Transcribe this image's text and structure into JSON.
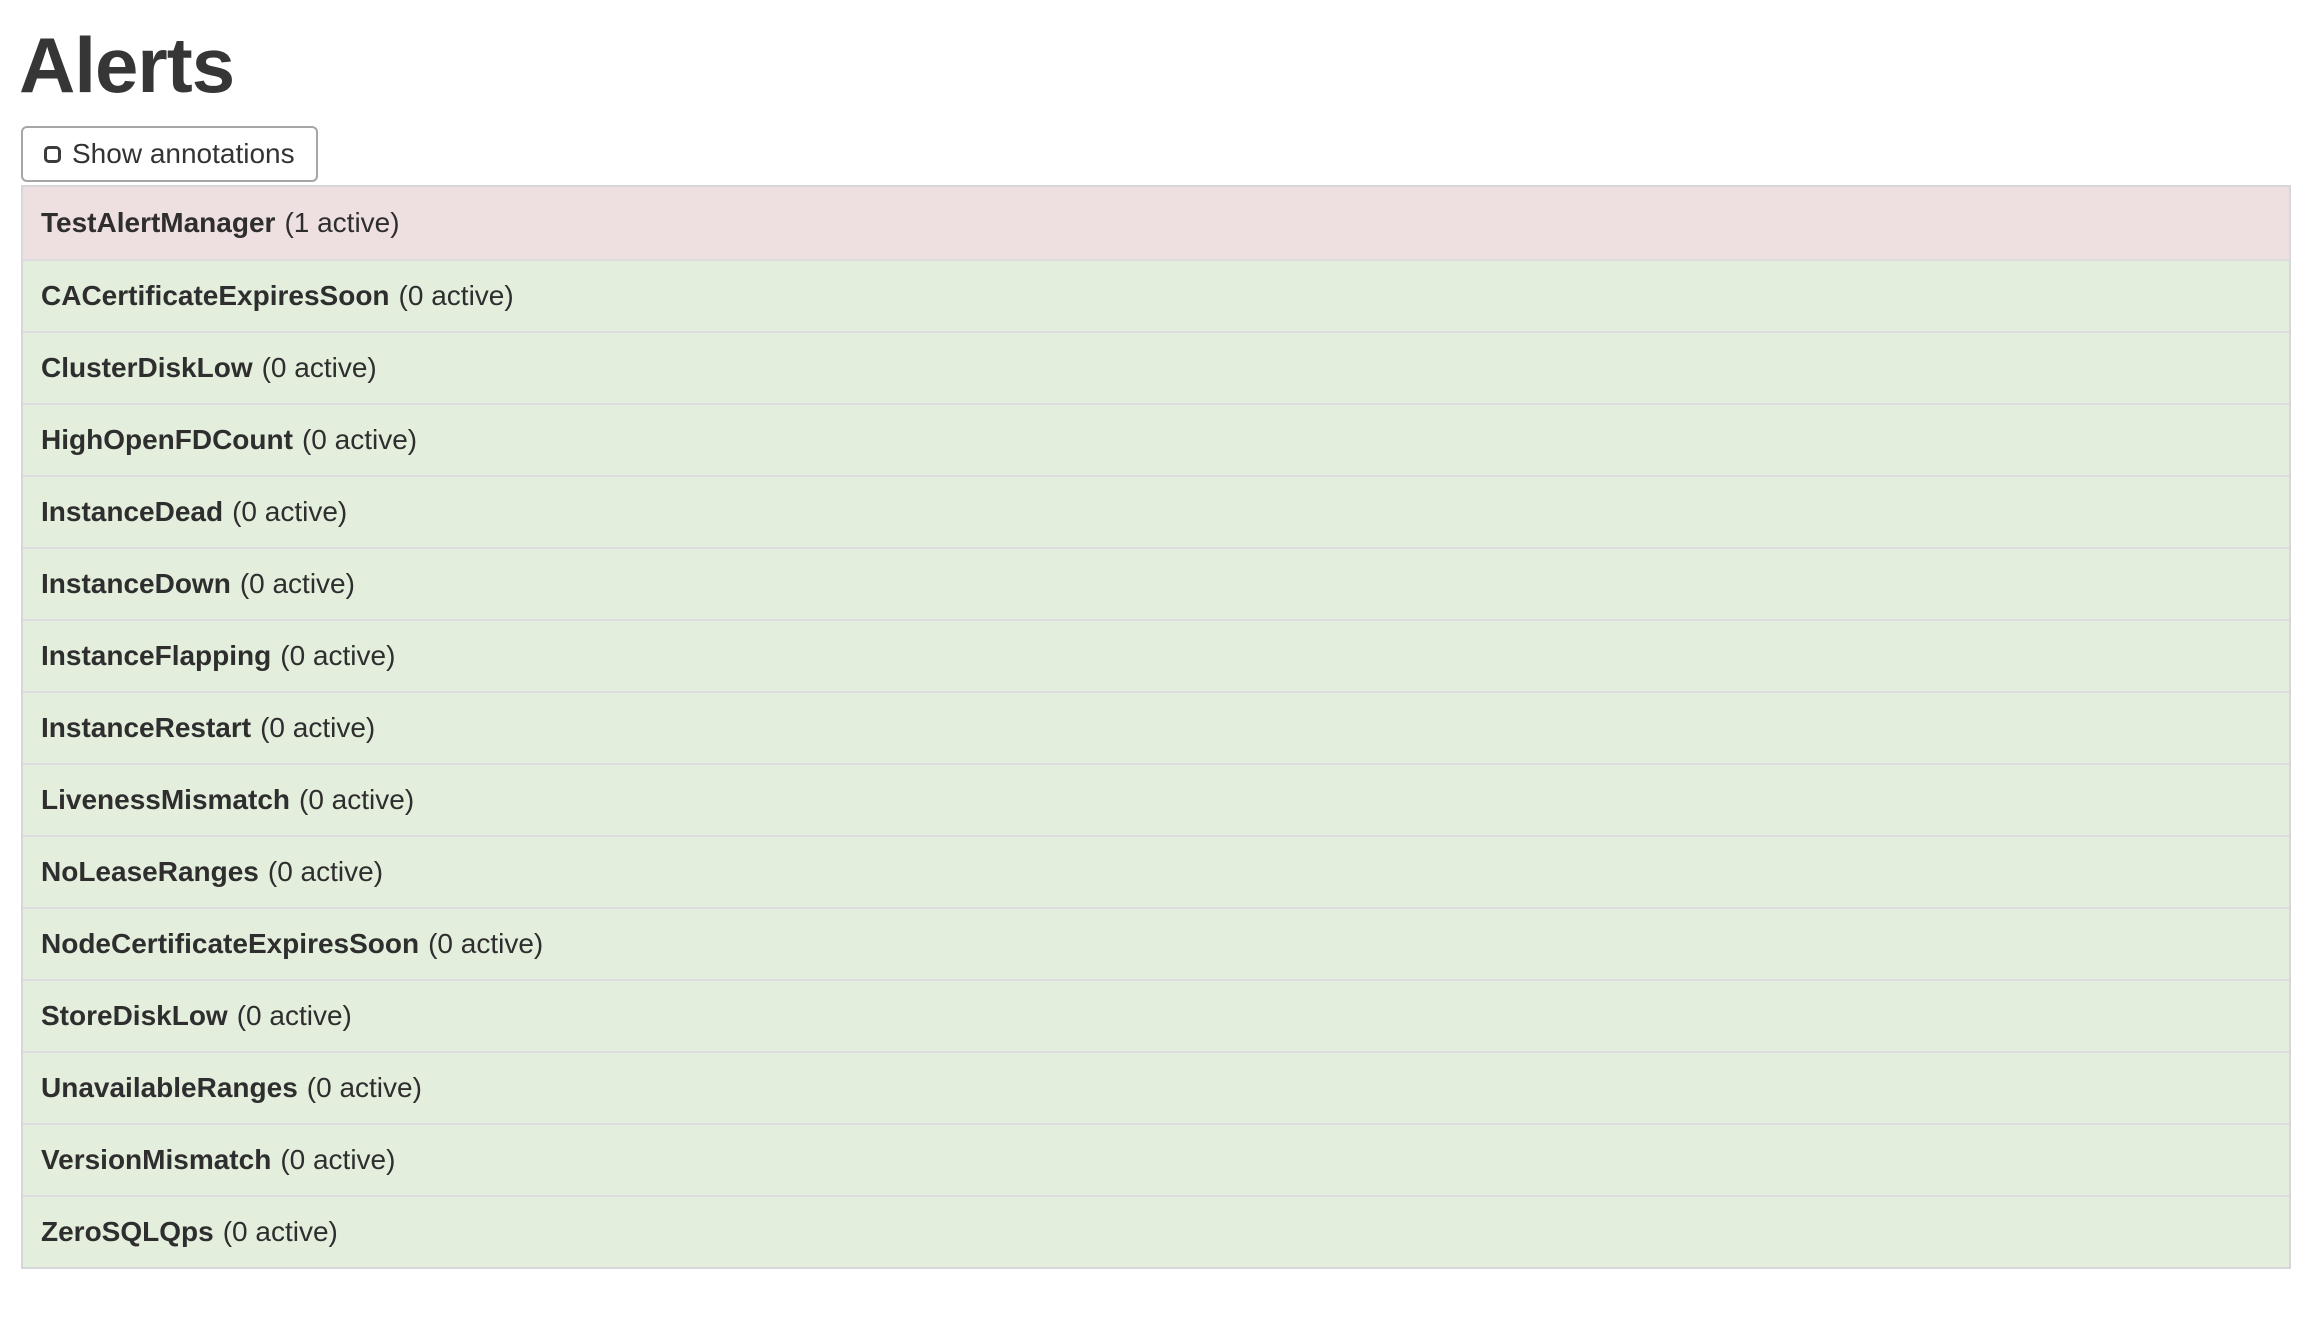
{
  "page": {
    "title": "Alerts"
  },
  "toolbar": {
    "show_annotations_label": "Show annotations",
    "show_annotations_checked": false
  },
  "alerts": {
    "items": [
      {
        "name": "TestAlertManager",
        "active_count": 1,
        "count_label": "(1 active)",
        "state": "firing"
      },
      {
        "name": "CACertificateExpiresSoon",
        "active_count": 0,
        "count_label": "(0 active)",
        "state": "inactive"
      },
      {
        "name": "ClusterDiskLow",
        "active_count": 0,
        "count_label": "(0 active)",
        "state": "inactive"
      },
      {
        "name": "HighOpenFDCount",
        "active_count": 0,
        "count_label": "(0 active)",
        "state": "inactive"
      },
      {
        "name": "InstanceDead",
        "active_count": 0,
        "count_label": "(0 active)",
        "state": "inactive"
      },
      {
        "name": "InstanceDown",
        "active_count": 0,
        "count_label": "(0 active)",
        "state": "inactive"
      },
      {
        "name": "InstanceFlapping",
        "active_count": 0,
        "count_label": "(0 active)",
        "state": "inactive"
      },
      {
        "name": "InstanceRestart",
        "active_count": 0,
        "count_label": "(0 active)",
        "state": "inactive"
      },
      {
        "name": "LivenessMismatch",
        "active_count": 0,
        "count_label": "(0 active)",
        "state": "inactive"
      },
      {
        "name": "NoLeaseRanges",
        "active_count": 0,
        "count_label": "(0 active)",
        "state": "inactive"
      },
      {
        "name": "NodeCertificateExpiresSoon",
        "active_count": 0,
        "count_label": "(0 active)",
        "state": "inactive"
      },
      {
        "name": "StoreDiskLow",
        "active_count": 0,
        "count_label": "(0 active)",
        "state": "inactive"
      },
      {
        "name": "UnavailableRanges",
        "active_count": 0,
        "count_label": "(0 active)",
        "state": "inactive"
      },
      {
        "name": "VersionMismatch",
        "active_count": 0,
        "count_label": "(0 active)",
        "state": "inactive"
      },
      {
        "name": "ZeroSQLQps",
        "active_count": 0,
        "count_label": "(0 active)",
        "state": "inactive"
      }
    ]
  },
  "colors": {
    "firing_bg": "#eedfe1",
    "inactive_bg": "#e3eedd",
    "row_divider": "#dddde0",
    "table_border": "#d7d7d9",
    "text": "#2e2e2e",
    "button_border": "#a6a6a6"
  }
}
